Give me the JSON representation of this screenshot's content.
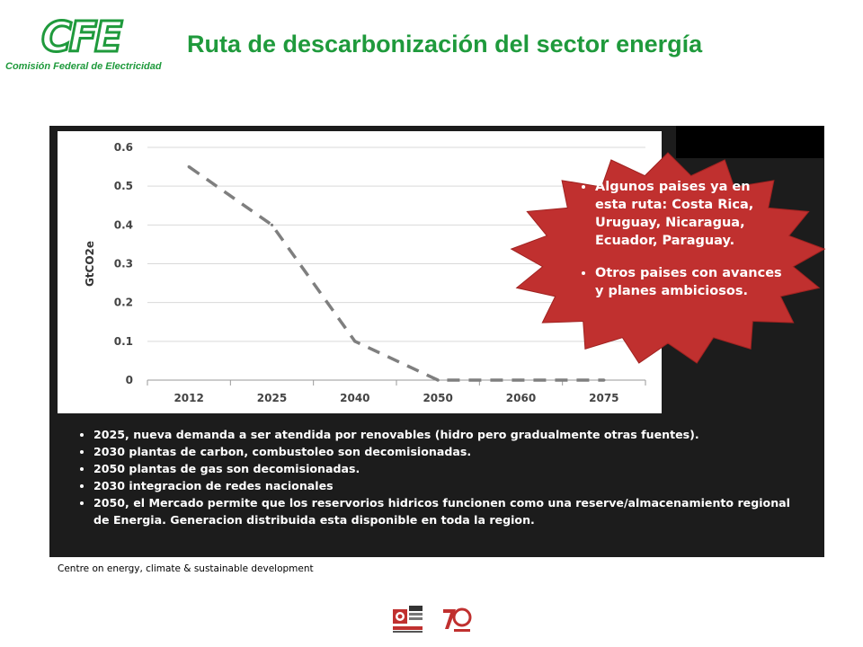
{
  "header": {
    "logo_text": "CFE",
    "logo_subtitle": "Comisión Federal de Electricidad",
    "title": "Ruta de descarbonización del sector energía"
  },
  "chart_data": {
    "type": "line",
    "x": [
      "2012",
      "2025",
      "2040",
      "2050",
      "2060",
      "2075"
    ],
    "series": [
      {
        "values": [
          0.55,
          0.4,
          0.1,
          0.0,
          0.0,
          0.0
        ]
      }
    ],
    "ylabel": "GtCO2e",
    "ylim": [
      0,
      0.6
    ],
    "yticks": [
      "0",
      "0.1",
      "0.2",
      "0.3",
      "0.4",
      "0.5",
      "0.6"
    ],
    "grid": true,
    "line_style": "dashed",
    "line_color": "#7f7f7f"
  },
  "callout": {
    "items": [
      "Algunos paises ya en esta ruta: Costa Rica, Uruguay, Nicaragua, Ecuador, Paraguay.",
      "Otros paises con avances y planes ambiciosos."
    ],
    "color": "#c0302f"
  },
  "notes": [
    "2025, nueva demanda a ser atendida por renovables (hidro pero gradualmente otras fuentes).",
    "2030 plantas de carbon, combustoleo son decomisionadas.",
    "2050 plantas de gas son decomisionadas.",
    "2030 integracion de redes nacionales",
    "2050, el Mercado permite que los reservorios hidricos funcionen como una reserve/almacenamiento regional de Energia.  Generacion distribuida esta disponible en toda la region."
  ],
  "caption": "Centre on energy, climate & sustainable development",
  "colors": {
    "brand_green": "#1f9a3c",
    "panel_bg": "#1c1c1c"
  },
  "footer_icons": [
    "conmemoracion-logo",
    "anniversary-75-logo"
  ]
}
